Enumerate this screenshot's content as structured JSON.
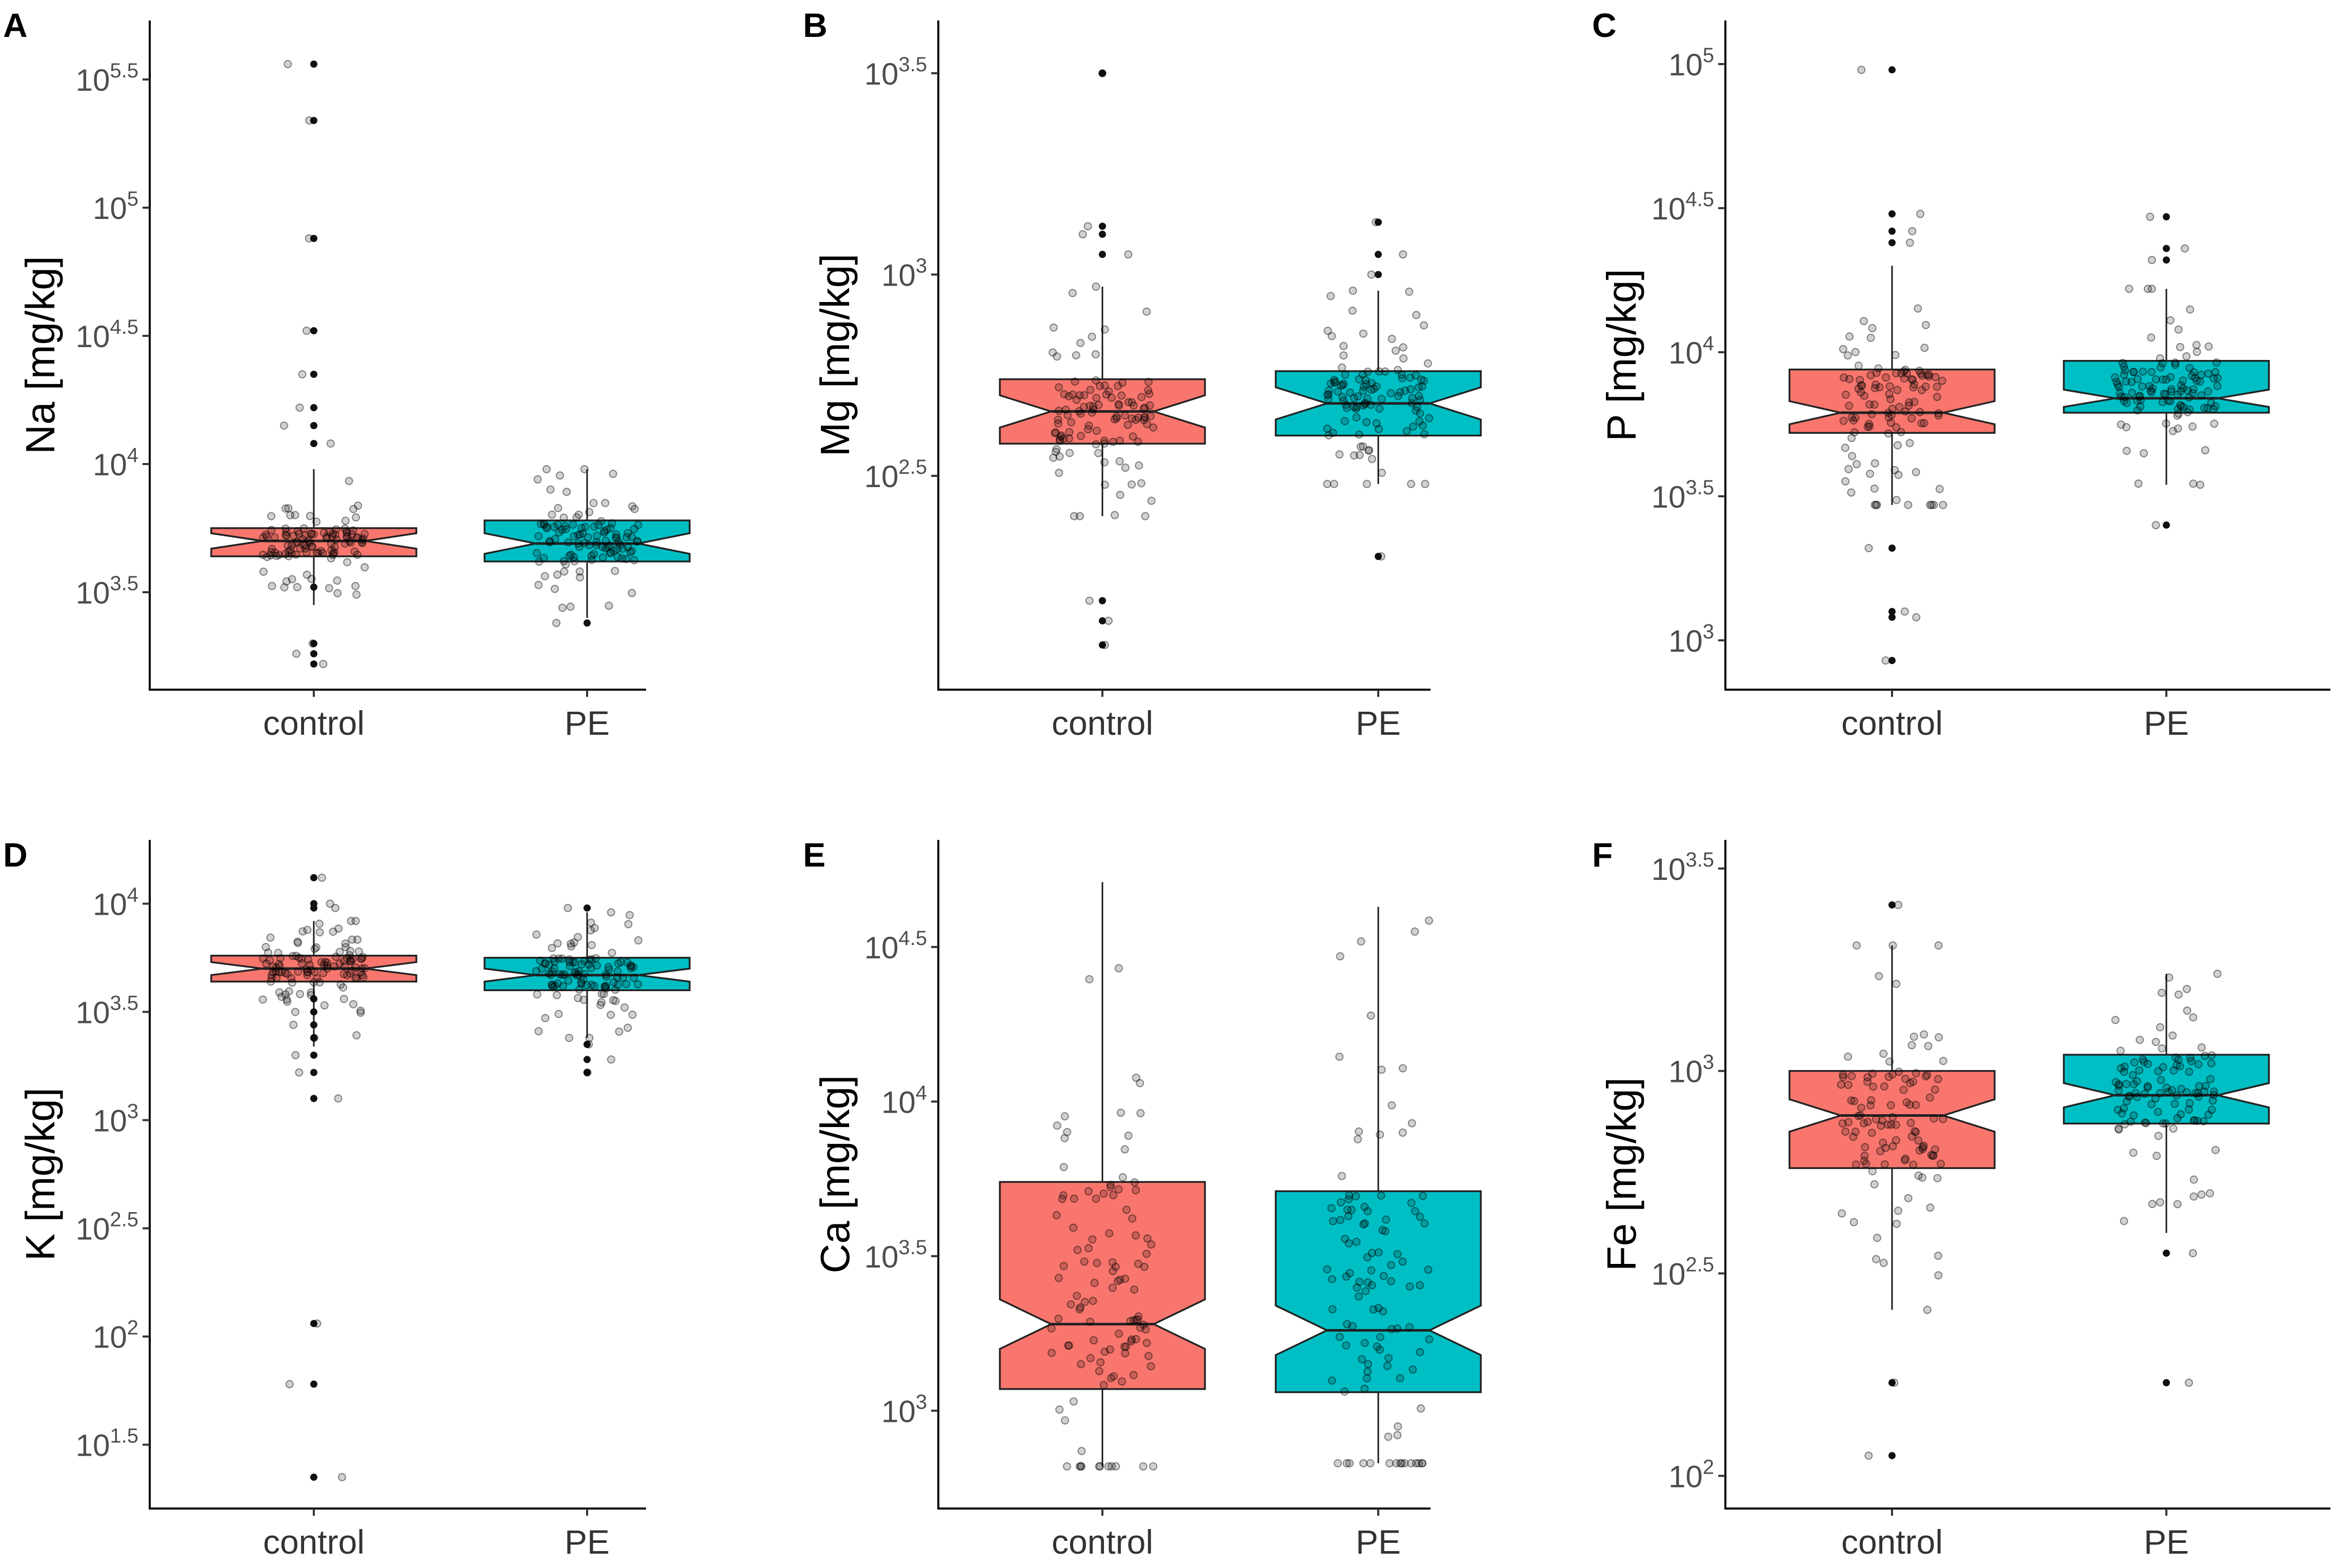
{
  "colors": {
    "control": "#F8766D",
    "PE": "#00BFC4"
  },
  "chart_data": [
    {
      "type": "boxplot",
      "panel": "A",
      "ylabel": "Na [mg/kg]",
      "yscale": "log10",
      "ylim": [
        3.2,
        5.65
      ],
      "yticks": [
        {
          "exp": 3.5,
          "base": "10",
          "sup": "3.5"
        },
        {
          "exp": 4,
          "base": "10",
          "sup": "4"
        },
        {
          "exp": 4.5,
          "base": "10",
          "sup": "4.5"
        },
        {
          "exp": 5,
          "base": "10",
          "sup": "5"
        },
        {
          "exp": 5.5,
          "base": "10",
          "sup": "5.5"
        }
      ],
      "categories": [
        "control",
        "PE"
      ],
      "groups": [
        {
          "name": "control",
          "q1": 3.64,
          "med": 3.7,
          "q3": 3.75,
          "whisker_low": 3.45,
          "whisker_high": 3.98,
          "notch": 0.03,
          "outliers": [
            3.22,
            3.26,
            3.3,
            3.52,
            4.08,
            4.15,
            4.22,
            4.35,
            4.52,
            4.88,
            5.34,
            5.56
          ]
        },
        {
          "name": "PE",
          "q1": 3.62,
          "med": 3.69,
          "q3": 3.78,
          "whisker_low": 3.4,
          "whisker_high": 3.98,
          "notch": 0.04,
          "outliers": [
            3.38
          ]
        }
      ]
    },
    {
      "type": "boxplot",
      "panel": "B",
      "ylabel": "Mg [mg/kg]",
      "yscale": "log10",
      "ylim": [
        2.02,
        3.58
      ],
      "yticks": [
        {
          "exp": 2.5,
          "base": "10",
          "sup": "2.5"
        },
        {
          "exp": 3,
          "base": "10",
          "sup": "3"
        },
        {
          "exp": 3.5,
          "base": "10",
          "sup": "3.5"
        }
      ],
      "categories": [
        "control",
        "PE"
      ],
      "groups": [
        {
          "name": "control",
          "q1": 2.58,
          "med": 2.66,
          "q3": 2.74,
          "whisker_low": 2.4,
          "whisker_high": 2.97,
          "notch": 0.04,
          "outliers": [
            2.08,
            2.14,
            2.19,
            3.05,
            3.1,
            3.12,
            3.5
          ]
        },
        {
          "name": "PE",
          "q1": 2.6,
          "med": 2.68,
          "q3": 2.76,
          "whisker_low": 2.48,
          "whisker_high": 2.96,
          "notch": 0.04,
          "outliers": [
            2.3,
            3.0,
            3.05,
            3.13
          ]
        }
      ]
    },
    {
      "type": "boxplot",
      "panel": "C",
      "ylabel": "P [mg/kg]",
      "yscale": "log10",
      "ylim": [
        2.9,
        5.08
      ],
      "yticks": [
        {
          "exp": 3,
          "base": "10",
          "sup": "3"
        },
        {
          "exp": 3.5,
          "base": "10",
          "sup": "3.5"
        },
        {
          "exp": 4,
          "base": "10",
          "sup": "4"
        },
        {
          "exp": 4.5,
          "base": "10",
          "sup": "4.5"
        },
        {
          "exp": 5,
          "base": "10",
          "sup": "5"
        }
      ],
      "categories": [
        "control",
        "PE"
      ],
      "groups": [
        {
          "name": "control",
          "q1": 3.72,
          "med": 3.79,
          "q3": 3.94,
          "whisker_low": 3.47,
          "whisker_high": 4.3,
          "notch": 0.04,
          "outliers": [
            2.93,
            3.08,
            3.1,
            3.32,
            4.38,
            4.42,
            4.48,
            4.98
          ]
        },
        {
          "name": "PE",
          "q1": 3.79,
          "med": 3.84,
          "q3": 3.97,
          "whisker_low": 3.54,
          "whisker_high": 4.22,
          "notch": 0.03,
          "outliers": [
            3.4,
            4.32,
            4.36,
            4.47
          ]
        }
      ]
    },
    {
      "type": "boxplot",
      "panel": "D",
      "ylabel": "K [mg/kg]",
      "yscale": "log10",
      "ylim": [
        1.3,
        4.2
      ],
      "yticks": [
        {
          "exp": 1.5,
          "base": "10",
          "sup": "1.5"
        },
        {
          "exp": 2,
          "base": "10",
          "sup": "2"
        },
        {
          "exp": 2.5,
          "base": "10",
          "sup": "2.5"
        },
        {
          "exp": 3,
          "base": "10",
          "sup": "3"
        },
        {
          "exp": 3.5,
          "base": "10",
          "sup": "3.5"
        },
        {
          "exp": 4,
          "base": "10",
          "sup": "4"
        }
      ],
      "categories": [
        "control",
        "PE"
      ],
      "groups": [
        {
          "name": "control",
          "q1": 3.64,
          "med": 3.7,
          "q3": 3.76,
          "whisker_low": 3.34,
          "whisker_high": 3.92,
          "notch": 0.03,
          "outliers": [
            1.35,
            1.78,
            2.06,
            3.1,
            3.22,
            3.3,
            3.38,
            3.44,
            3.5,
            3.56,
            3.98,
            4.0,
            4.12
          ]
        },
        {
          "name": "PE",
          "q1": 3.6,
          "med": 3.67,
          "q3": 3.75,
          "whisker_low": 3.38,
          "whisker_high": 3.96,
          "notch": 0.03,
          "outliers": [
            3.22,
            3.28,
            3.35,
            3.98
          ]
        }
      ]
    },
    {
      "type": "boxplot",
      "panel": "E",
      "ylabel": "Ca [mg/kg]",
      "yscale": "log10",
      "ylim": [
        2.75,
        4.78
      ],
      "yticks": [
        {
          "exp": 3,
          "base": "10",
          "sup": "3"
        },
        {
          "exp": 3.5,
          "base": "10",
          "sup": "3.5"
        },
        {
          "exp": 4,
          "base": "10",
          "sup": "4"
        },
        {
          "exp": 4.5,
          "base": "10",
          "sup": "4.5"
        }
      ],
      "categories": [
        "control",
        "PE"
      ],
      "groups": [
        {
          "name": "control",
          "q1": 3.07,
          "med": 3.28,
          "q3": 3.74,
          "whisker_low": 2.82,
          "whisker_high": 4.71,
          "notch": 0.08,
          "outliers": []
        },
        {
          "name": "PE",
          "q1": 3.06,
          "med": 3.26,
          "q3": 3.71,
          "whisker_low": 2.83,
          "whisker_high": 4.63,
          "notch": 0.08,
          "outliers": []
        }
      ]
    },
    {
      "type": "boxplot",
      "panel": "F",
      "ylabel": "Fe [mg/kg]",
      "yscale": "log10",
      "ylim": [
        1.97,
        3.52
      ],
      "yticks": [
        {
          "exp": 2,
          "base": "10",
          "sup": "2"
        },
        {
          "exp": 2.5,
          "base": "10",
          "sup": "2.5"
        },
        {
          "exp": 3,
          "base": "10",
          "sup": "3"
        },
        {
          "exp": 3.5,
          "base": "10",
          "sup": "3.5"
        }
      ],
      "categories": [
        "control",
        "PE"
      ],
      "groups": [
        {
          "name": "control",
          "q1": 2.76,
          "med": 2.89,
          "q3": 3.0,
          "whisker_low": 2.41,
          "whisker_high": 3.31,
          "notch": 0.04,
          "outliers": [
            2.05,
            2.23,
            3.41
          ]
        },
        {
          "name": "PE",
          "q1": 2.87,
          "med": 2.94,
          "q3": 3.04,
          "whisker_low": 2.6,
          "whisker_high": 3.24,
          "notch": 0.03,
          "outliers": [
            2.23,
            2.55
          ]
        }
      ]
    }
  ]
}
